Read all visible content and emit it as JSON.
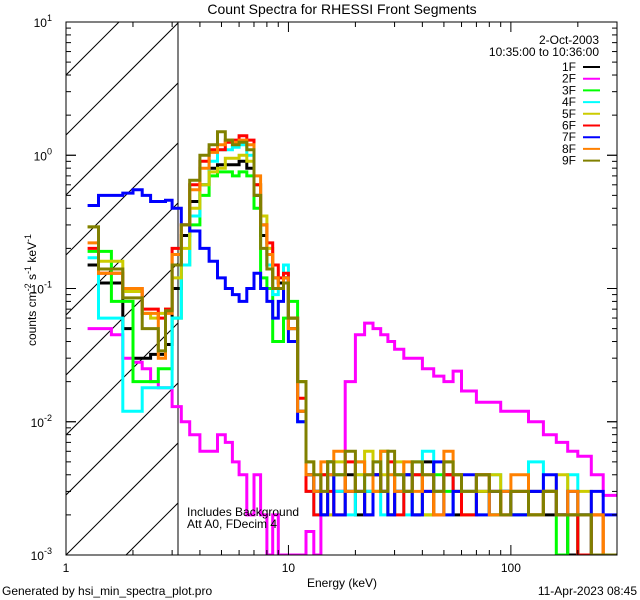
{
  "chart_data": {
    "type": "line",
    "title": "Count Spectra for RHESSI Front Segments",
    "xlabel": "Energy (keV)",
    "ylabel_parts": [
      "counts cm",
      "-2",
      " s",
      "-1",
      " keV",
      "-1"
    ],
    "xscale": "log",
    "yscale": "log",
    "xlim": [
      1,
      300
    ],
    "ylim": [
      0.001,
      10
    ],
    "x_tick_labels": [
      "1",
      "10",
      "100"
    ],
    "x_tick_values": [
      1,
      10,
      100
    ],
    "y_tick_values": [
      10,
      1,
      0.1,
      0.01,
      0.001
    ],
    "y_tick_base": "10",
    "y_tick_exponents": [
      "1",
      "0",
      "-1",
      "-2",
      "-3"
    ],
    "date": "2-Oct-2003",
    "time_range": "10:35:00 to 10:36:00",
    "excluded_region_keV": [
      1,
      3
    ],
    "annotations": [
      "Includes Background",
      "Att A0, FDecim 4"
    ],
    "legend_position": "top-right",
    "energy_edges": [
      1.25,
      1.4,
      1.6,
      1.8,
      2.0,
      2.2,
      2.4,
      2.6,
      2.8,
      3.0,
      3.3,
      3.6,
      4.0,
      4.4,
      4.8,
      5.2,
      5.6,
      6.0,
      6.5,
      7.0,
      7.5,
      8.0,
      8.5,
      9.0,
      9.5,
      10,
      11,
      12,
      13,
      14,
      15,
      16,
      18,
      20,
      22,
      24,
      26,
      28,
      30,
      33,
      36,
      40,
      45,
      50,
      55,
      60,
      70,
      80,
      90,
      100,
      120,
      140,
      160,
      180,
      200,
      230,
      260,
      300
    ],
    "series": [
      {
        "name": "1F",
        "color": "#000000",
        "values": [
          0.15,
          0.11,
          0.11,
          0.05,
          0.03,
          0.03,
          0.032,
          0.032,
          0.038,
          0.1,
          0.25,
          0.45,
          0.6,
          0.8,
          0.85,
          0.85,
          0.85,
          0.9,
          0.8,
          0.5,
          0.25,
          0.15,
          0.12,
          0.11,
          0.12,
          0.05,
          0.012,
          0.004,
          0.003,
          0.002,
          0.005,
          0.003,
          0.004,
          0.002,
          0.003,
          0.004,
          0.003,
          0.002,
          0.003,
          0.004,
          0.002,
          0.005,
          0.003,
          0.004,
          0.002,
          0.003,
          0.003,
          0.002,
          0.003,
          0.002,
          0.003,
          0.002,
          0.002,
          0.001,
          0.002,
          0.001,
          0.001
        ]
      },
      {
        "name": "2F",
        "color": "#ff00ff",
        "values": [
          0.05,
          0.05,
          0.045,
          0.03,
          0.028,
          0.025,
          0.02,
          0.018,
          0.018,
          0.013,
          0.01,
          0.008,
          0.006,
          0.006,
          0.008,
          0.007,
          0.005,
          0.004,
          0.002,
          0.004,
          0.002,
          0,
          0.002,
          0,
          0,
          0,
          0,
          0.0015,
          0,
          0.003,
          0.002,
          0.003,
          0.02,
          0.045,
          0.055,
          0.05,
          0.045,
          0.04,
          0.035,
          0.03,
          0.03,
          0.025,
          0.022,
          0.02,
          0.024,
          0.017,
          0.014,
          0.014,
          0.012,
          0.012,
          0.01,
          0.008,
          0.007,
          0.006,
          0.0055,
          0.004,
          0.0028
        ]
      },
      {
        "name": "3F",
        "color": "#00ff00",
        "values": [
          0.19,
          0.19,
          0.08,
          0.08,
          0.02,
          0.02,
          0.02,
          0.025,
          0.025,
          0.06,
          0.15,
          0.3,
          0.5,
          0.7,
          0.75,
          0.75,
          0.7,
          0.75,
          0.7,
          0.4,
          0.12,
          0.1,
          0.04,
          0.04,
          0.06,
          0.08,
          0.02,
          0.004,
          0.003,
          0.002,
          0.005,
          0.004,
          0.003,
          0.005,
          0.002,
          0.003,
          0.006,
          0.002,
          0.004,
          0.003,
          0.005,
          0.002,
          0.004,
          0.003,
          0.003,
          0.002,
          0.004,
          0.002,
          0.003,
          0.002,
          0.002,
          0.003,
          0.001,
          0.002,
          0.001,
          0.001,
          0.001
        ]
      },
      {
        "name": "4F",
        "color": "#00ffff",
        "values": [
          0.17,
          0.06,
          0.06,
          0.012,
          0.012,
          0.018,
          0.018,
          0.018,
          0.018,
          0.06,
          0.15,
          0.35,
          0.6,
          0.9,
          1.1,
          1.1,
          1.15,
          1.2,
          1.0,
          0.6,
          0.3,
          0.15,
          0.09,
          0.1,
          0.15,
          0.06,
          0.01,
          0.003,
          0.002,
          0.004,
          0.005,
          0.003,
          0.002,
          0.004,
          0.003,
          0.005,
          0.002,
          0.004,
          0.003,
          0.002,
          0.004,
          0.006,
          0.003,
          0.002,
          0.004,
          0.003,
          0.002,
          0.004,
          0.003,
          0.002,
          0.005,
          0.003,
          0.002,
          0.004,
          0.002,
          0.001,
          0.001
        ]
      },
      {
        "name": "5F",
        "color": "#cccc00",
        "values": [
          0.29,
          0.16,
          0.16,
          0.095,
          0.095,
          0.065,
          0.06,
          0.065,
          0.07,
          0.12,
          0.2,
          0.4,
          0.6,
          0.75,
          0.8,
          0.95,
          0.95,
          1.0,
          0.9,
          0.6,
          0.35,
          0.2,
          0.1,
          0.1,
          0.11,
          0.06,
          0.02,
          0.005,
          0.003,
          0.004,
          0.002,
          0.005,
          0.003,
          0.004,
          0.006,
          0.003,
          0.004,
          0.002,
          0.005,
          0.003,
          0.004,
          0.002,
          0.003,
          0.005,
          0.004,
          0.002,
          0.003,
          0.004,
          0.002,
          0.003,
          0.002,
          0.003,
          0.004,
          0.002,
          0.003,
          0.002,
          0.001
        ]
      },
      {
        "name": "6F",
        "color": "#ff0000",
        "values": [
          0.2,
          0.13,
          0.13,
          0.1,
          0.1,
          0.07,
          0.07,
          0.06,
          0.07,
          0.2,
          0.3,
          0.6,
          0.9,
          1.1,
          1.1,
          1.25,
          1.3,
          1.4,
          1.3,
          0.6,
          0.3,
          0.22,
          0.15,
          0.12,
          0.13,
          0.06,
          0.015,
          0.003,
          0.002,
          0.004,
          0.003,
          0.002,
          0.005,
          0.003,
          0.002,
          0.004,
          0.003,
          0.005,
          0.002,
          0.003,
          0.004,
          0.003,
          0.002,
          0.004,
          0.003,
          0.002,
          0.004,
          0.003,
          0.002,
          0.003,
          0.002,
          0.003,
          0.002,
          0.002,
          0.001,
          0.002,
          0.001
        ]
      },
      {
        "name": "7F",
        "color": "#0000ff",
        "values": [
          0.42,
          0.5,
          0.5,
          0.52,
          0.55,
          0.5,
          0.45,
          0.45,
          0.46,
          0.4,
          0.3,
          0.27,
          0.2,
          0.16,
          0.12,
          0.1,
          0.09,
          0.08,
          0.1,
          0.13,
          0.1,
          0.08,
          0.06,
          0.08,
          0.12,
          0.04,
          0.01,
          0.004,
          0.003,
          0.002,
          0.004,
          0.002,
          0.003,
          0.003,
          0.002,
          0.004,
          0.003,
          0.002,
          0.003,
          0.004,
          0.002,
          0.003,
          0.005,
          0.002,
          0.003,
          0.004,
          0.002,
          0.003,
          0.003,
          0.002,
          0.003,
          0.004,
          0.002,
          0.003,
          0.002,
          0.003,
          0.002
        ]
      },
      {
        "name": "8F",
        "color": "#ff8000",
        "values": [
          0.22,
          0.13,
          0.13,
          0.1,
          0.1,
          0.065,
          0.065,
          0.03,
          0.065,
          0.18,
          0.3,
          0.55,
          0.8,
          1.05,
          1.2,
          1.3,
          1.25,
          1.3,
          1.2,
          0.7,
          0.3,
          0.18,
          0.12,
          0.1,
          0.12,
          0.05,
          0.012,
          0.004,
          0.003,
          0.005,
          0.004,
          0.006,
          0.003,
          0.005,
          0.004,
          0.003,
          0.006,
          0.004,
          0.003,
          0.005,
          0.003,
          0.004,
          0.002,
          0.006,
          0.004,
          0.003,
          0.004,
          0.002,
          0.003,
          0.004,
          0.002,
          0.003,
          0.002,
          0.003,
          0.002,
          0.002,
          0.001
        ]
      },
      {
        "name": "9F",
        "color": "#808000",
        "values": [
          0.29,
          0.14,
          0.14,
          0.085,
          0.085,
          0.05,
          0.05,
          0.034,
          0.068,
          0.15,
          0.3,
          0.65,
          1.0,
          1.2,
          1.5,
          1.3,
          1.2,
          1.25,
          1.1,
          0.5,
          0.2,
          0.14,
          0.1,
          0.1,
          0.11,
          0.06,
          0.02,
          0.005,
          0.004,
          0.003,
          0.005,
          0.004,
          0.006,
          0.003,
          0.004,
          0.005,
          0.003,
          0.006,
          0.004,
          0.003,
          0.005,
          0.004,
          0.003,
          0.005,
          0.004,
          0.003,
          0.004,
          0.003,
          0.002,
          0.003,
          0.002,
          0.003,
          0.002,
          0.002,
          0.002,
          0.001,
          0.001
        ]
      }
    ]
  },
  "footer": {
    "generator": "Generated by hsi_min_spectra_plot.pro",
    "timestamp": "11-Apr-2023 08:45"
  }
}
